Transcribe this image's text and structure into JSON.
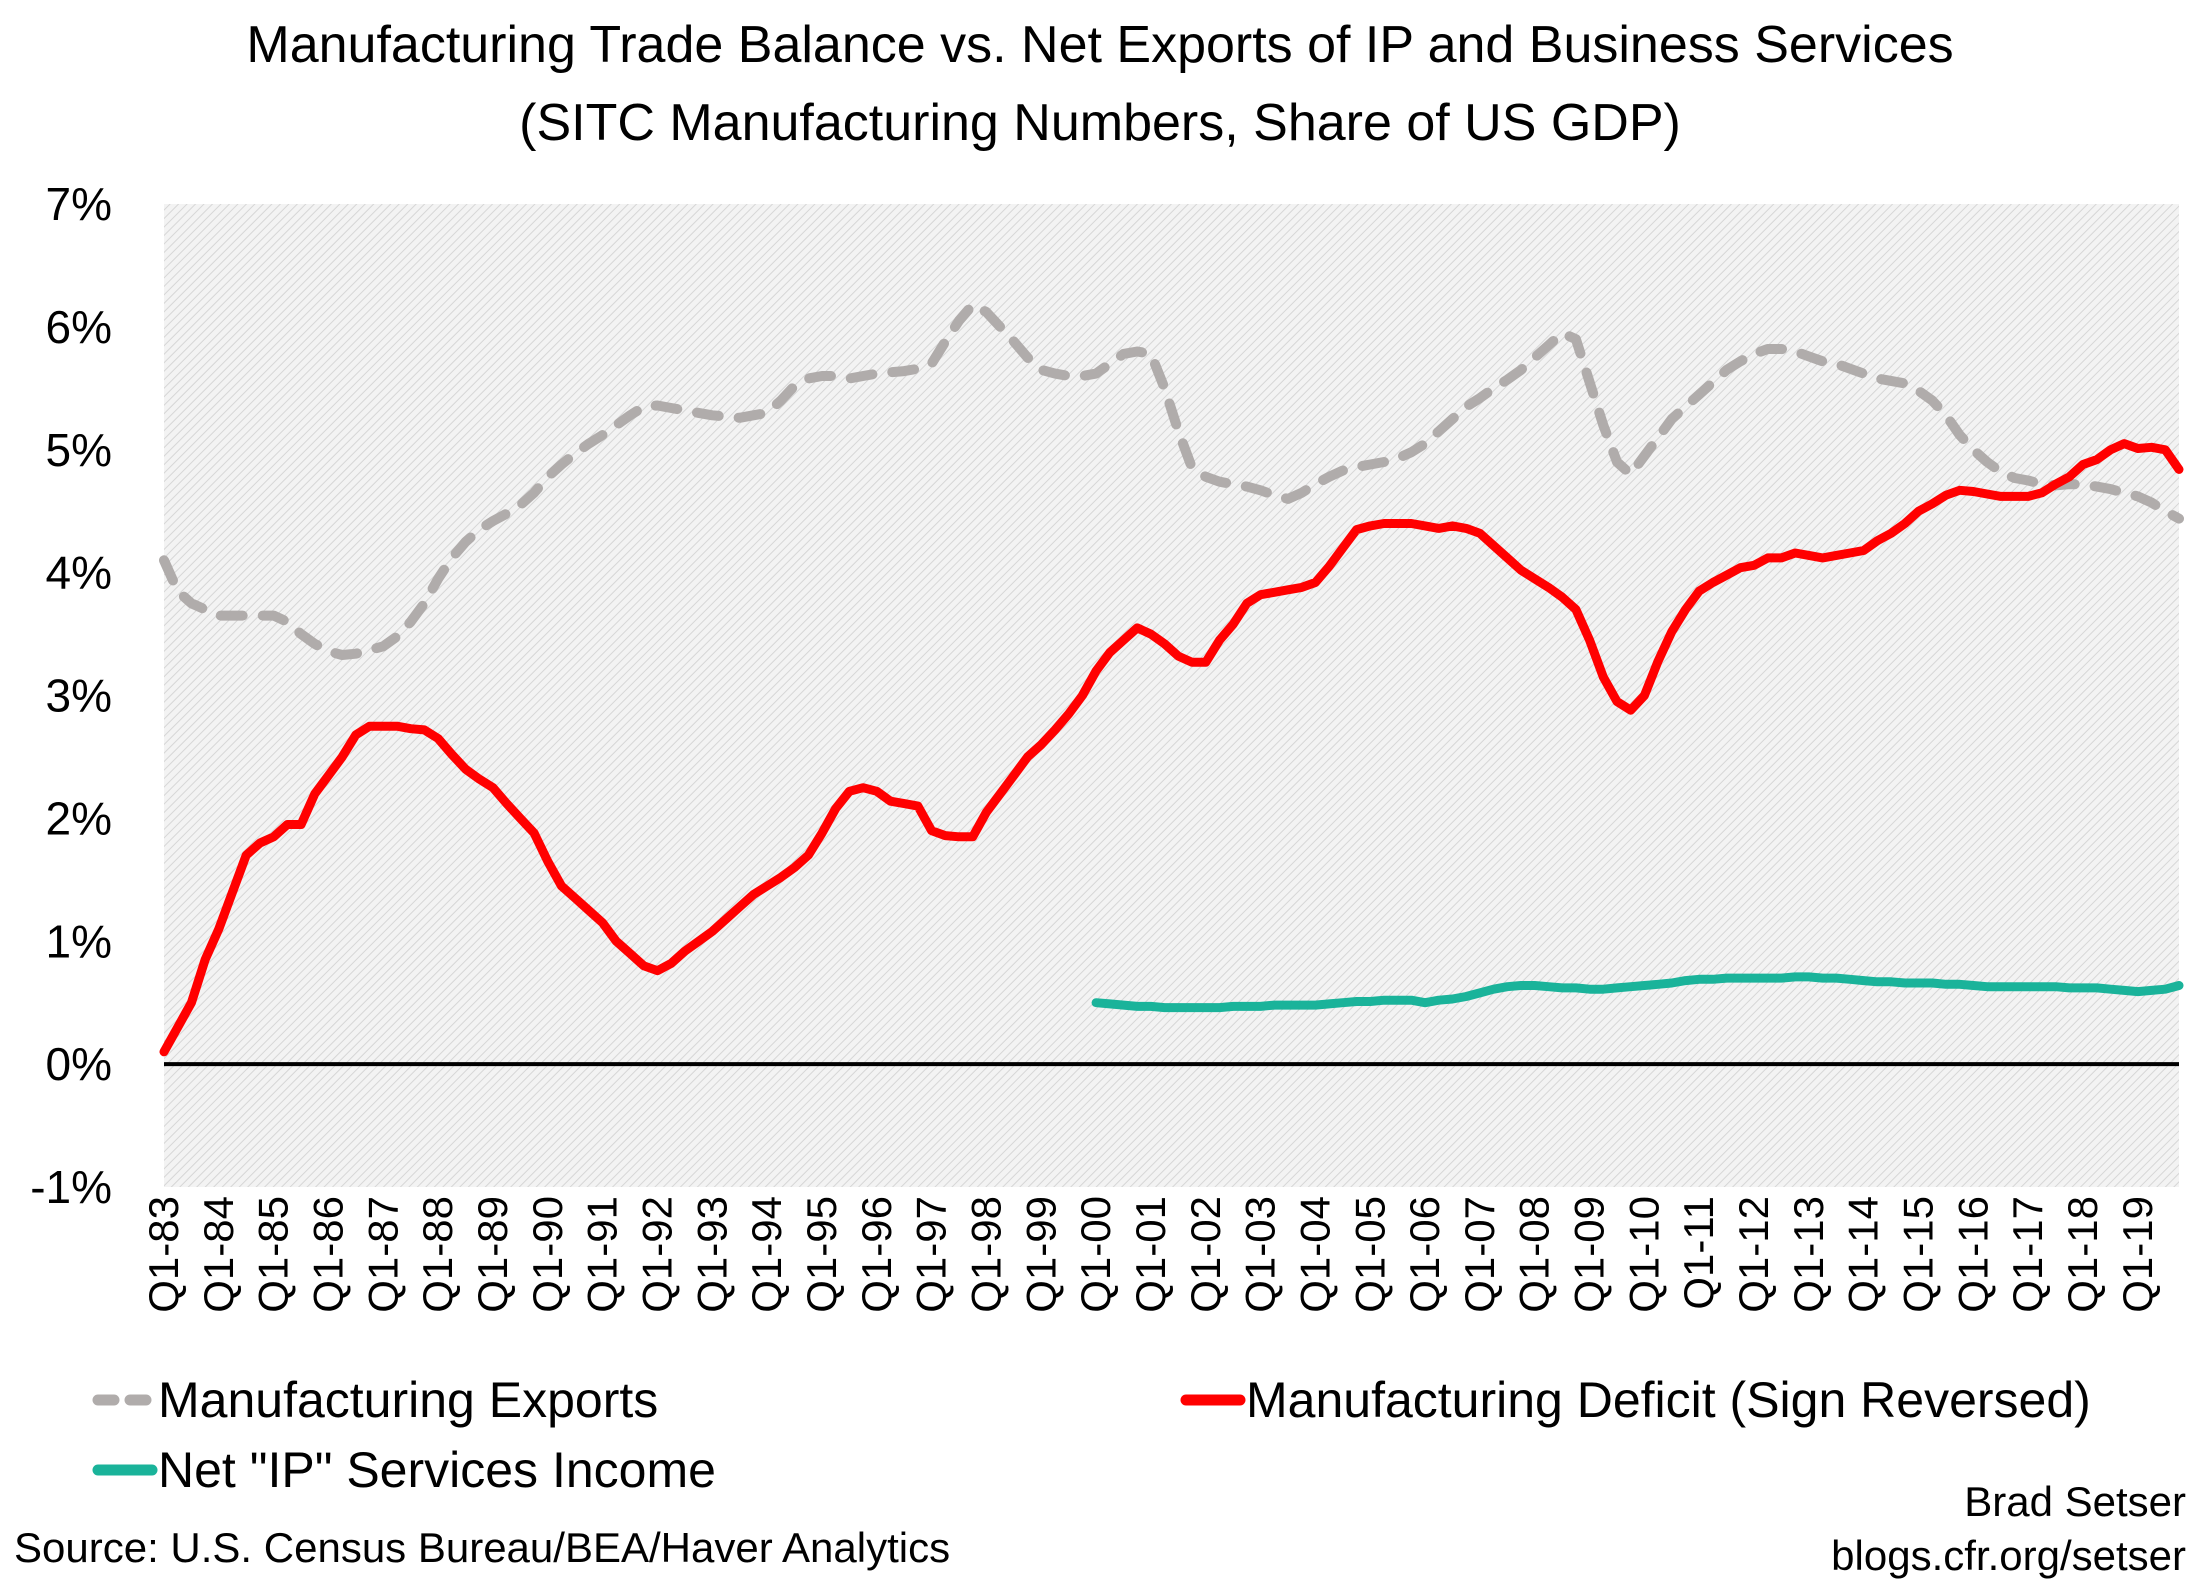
{
  "chart_data": {
    "type": "line",
    "title": "Manufacturing Trade Balance vs. Net Exports of IP and Business Services",
    "subtitle": "(SITC Manufacturing Numbers, Share of US GDP)",
    "xlabel": "",
    "ylabel": "",
    "ylim": [
      -1,
      7
    ],
    "yticks": [
      "-1%",
      "0%",
      "1%",
      "2%",
      "3%",
      "4%",
      "5%",
      "6%",
      "7%"
    ],
    "x_start": "Q1-83",
    "x_end": "Q4-19",
    "frequency": "quarterly",
    "xtick_labels": [
      "Q1-83",
      "Q1-84",
      "Q1-85",
      "Q1-86",
      "Q1-87",
      "Q1-88",
      "Q1-89",
      "Q1-90",
      "Q1-91",
      "Q1-92",
      "Q1-93",
      "Q1-94",
      "Q1-95",
      "Q1-96",
      "Q1-97",
      "Q1-98",
      "Q1-99",
      "Q1-00",
      "Q1-01",
      "Q1-02",
      "Q1-03",
      "Q1-04",
      "Q1-05",
      "Q1-06",
      "Q1-07",
      "Q1-08",
      "Q1-09",
      "Q1-10",
      "Q1-11",
      "Q1-12",
      "Q1-13",
      "Q1-14",
      "Q1-15",
      "Q1-16",
      "Q1-17",
      "Q1-18",
      "Q1-19"
    ],
    "grid": false,
    "background": "hatched light gray",
    "zero_line": true,
    "legend_placement": "bottom",
    "series": [
      {
        "name": "Manufacturing Exports",
        "color": "#B0ACAB",
        "style": "dashed",
        "start": "Q1-83",
        "values": [
          4.1,
          3.85,
          3.75,
          3.7,
          3.65,
          3.65,
          3.65,
          3.65,
          3.65,
          3.6,
          3.5,
          3.42,
          3.36,
          3.33,
          3.34,
          3.37,
          3.4,
          3.48,
          3.6,
          3.75,
          3.95,
          4.12,
          4.25,
          4.35,
          4.42,
          4.48,
          4.55,
          4.65,
          4.78,
          4.88,
          4.97,
          5.05,
          5.12,
          5.2,
          5.28,
          5.35,
          5.36,
          5.34,
          5.32,
          5.3,
          5.28,
          5.27,
          5.26,
          5.28,
          5.3,
          5.4,
          5.52,
          5.58,
          5.6,
          5.6,
          5.58,
          5.6,
          5.62,
          5.63,
          5.64,
          5.66,
          5.7,
          5.88,
          6.05,
          6.18,
          6.12,
          6.0,
          5.88,
          5.75,
          5.65,
          5.62,
          5.6,
          5.6,
          5.62,
          5.7,
          5.78,
          5.8,
          5.78,
          5.5,
          5.15,
          4.85,
          4.78,
          4.74,
          4.72,
          4.7,
          4.67,
          4.63,
          4.6,
          4.65,
          4.72,
          4.78,
          4.83,
          4.86,
          4.88,
          4.9,
          4.93,
          4.98,
          5.05,
          5.15,
          5.25,
          5.35,
          5.42,
          5.5,
          5.57,
          5.65,
          5.75,
          5.85,
          5.95,
          5.9,
          5.55,
          5.2,
          4.9,
          4.8,
          4.95,
          5.1,
          5.25,
          5.35,
          5.45,
          5.55,
          5.65,
          5.72,
          5.78,
          5.82,
          5.82,
          5.8,
          5.76,
          5.72,
          5.7,
          5.66,
          5.62,
          5.58,
          5.56,
          5.54,
          5.48,
          5.4,
          5.28,
          5.12,
          5.0,
          4.9,
          4.82,
          4.77,
          4.75,
          4.72,
          4.71,
          4.72,
          4.72,
          4.7,
          4.68,
          4.65,
          4.62,
          4.57,
          4.5,
          4.44
        ]
      },
      {
        "name": "Manufacturing Deficit (Sign Reversed)",
        "color": "#FF0000",
        "style": "solid",
        "start": "Q1-83",
        "values": [
          0.1,
          0.3,
          0.5,
          0.85,
          1.1,
          1.4,
          1.7,
          1.8,
          1.85,
          1.95,
          1.95,
          2.2,
          2.35,
          2.5,
          2.68,
          2.75,
          2.75,
          2.75,
          2.73,
          2.72,
          2.65,
          2.52,
          2.4,
          2.32,
          2.25,
          2.12,
          2.0,
          1.88,
          1.65,
          1.45,
          1.35,
          1.25,
          1.15,
          1.0,
          0.9,
          0.8,
          0.76,
          0.82,
          0.92,
          1.0,
          1.08,
          1.18,
          1.28,
          1.38,
          1.45,
          1.52,
          1.6,
          1.7,
          1.88,
          2.08,
          2.22,
          2.25,
          2.22,
          2.14,
          2.12,
          2.1,
          1.9,
          1.86,
          1.85,
          1.85,
          2.05,
          2.2,
          2.35,
          2.5,
          2.6,
          2.72,
          2.85,
          3.0,
          3.2,
          3.35,
          3.45,
          3.55,
          3.5,
          3.42,
          3.32,
          3.27,
          3.27,
          3.45,
          3.58,
          3.75,
          3.82,
          3.84,
          3.86,
          3.88,
          3.92,
          4.05,
          4.2,
          4.35,
          4.38,
          4.4,
          4.4,
          4.4,
          4.38,
          4.36,
          4.38,
          4.36,
          4.32,
          4.22,
          4.12,
          4.02,
          3.95,
          3.88,
          3.8,
          3.7,
          3.45,
          3.15,
          2.95,
          2.88,
          3.0,
          3.28,
          3.52,
          3.7,
          3.85,
          3.92,
          3.98,
          4.04,
          4.06,
          4.12,
          4.12,
          4.16,
          4.14,
          4.12,
          4.14,
          4.16,
          4.18,
          4.26,
          4.32,
          4.4,
          4.5,
          4.56,
          4.63,
          4.67,
          4.66,
          4.64,
          4.62,
          4.62,
          4.62,
          4.65,
          4.72,
          4.78,
          4.88,
          4.92,
          5.0,
          5.05,
          5.01,
          5.02,
          5.0,
          4.84
        ]
      },
      {
        "name": "Net \"IP\" Services Income",
        "color": "#1AB39A",
        "style": "solid",
        "start": "Q1-00",
        "values": [
          0.5,
          0.49,
          0.48,
          0.47,
          0.47,
          0.46,
          0.46,
          0.46,
          0.46,
          0.46,
          0.47,
          0.47,
          0.47,
          0.48,
          0.48,
          0.48,
          0.48,
          0.49,
          0.5,
          0.51,
          0.51,
          0.52,
          0.52,
          0.52,
          0.5,
          0.52,
          0.53,
          0.55,
          0.58,
          0.61,
          0.63,
          0.64,
          0.64,
          0.63,
          0.62,
          0.62,
          0.61,
          0.61,
          0.62,
          0.63,
          0.64,
          0.65,
          0.66,
          0.68,
          0.69,
          0.69,
          0.7,
          0.7,
          0.7,
          0.7,
          0.7,
          0.71,
          0.71,
          0.7,
          0.7,
          0.69,
          0.68,
          0.67,
          0.67,
          0.66,
          0.66,
          0.66,
          0.65,
          0.65,
          0.64,
          0.63,
          0.63,
          0.63,
          0.63,
          0.63,
          0.63,
          0.62,
          0.62,
          0.62,
          0.61,
          0.6,
          0.59,
          0.6,
          0.61,
          0.64
        ]
      }
    ]
  },
  "footer": {
    "source": "Source: U.S. Census Bureau/BEA/Haver Analytics",
    "author": "Brad Setser",
    "site": "blogs.cfr.org/setser"
  }
}
